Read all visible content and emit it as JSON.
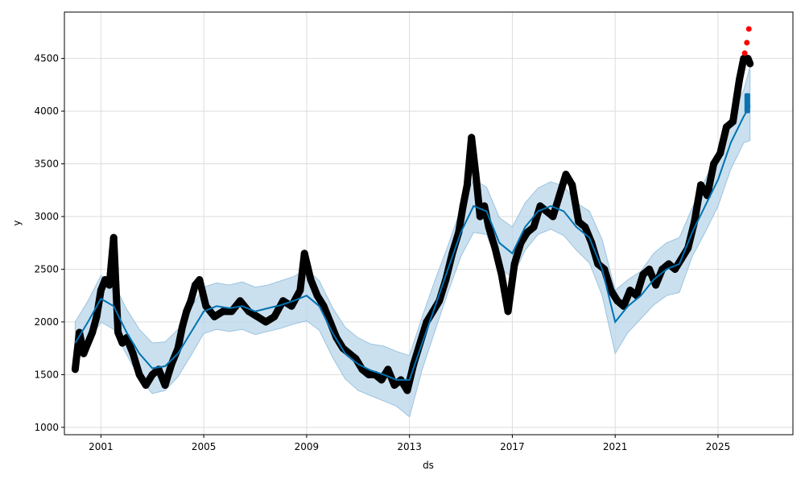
{
  "chart_data": {
    "type": "line",
    "xlabel": "ds",
    "ylabel": "y",
    "xlim": [
      "1999-08-01",
      "2027-12-01"
    ],
    "ylim": [
      930,
      4940
    ],
    "grid": true,
    "x_ticks": [
      {
        "label": "2001",
        "date": "2001-01-01"
      },
      {
        "label": "2005",
        "date": "2005-01-01"
      },
      {
        "label": "2009",
        "date": "2009-01-01"
      },
      {
        "label": "2013",
        "date": "2013-01-01"
      },
      {
        "label": "2017",
        "date": "2017-01-01"
      },
      {
        "label": "2021",
        "date": "2021-01-01"
      },
      {
        "label": "2025",
        "date": "2025-01-01"
      }
    ],
    "y_ticks": [
      1000,
      1500,
      2000,
      2500,
      3000,
      3500,
      4000,
      4500
    ],
    "colors": {
      "actual": "#000000",
      "forecast_line": "#0072B2",
      "uncertainty_band": "#B8D5E9",
      "future_points": "#FF0000",
      "forecast_block": "#0A72B0",
      "grid": "#dddddd"
    },
    "series": [
      {
        "role": "actual-observations",
        "x": [
          "2000-01-01",
          "2000-03-01",
          "2000-05-01",
          "2000-07-01",
          "2000-09-01",
          "2000-11-01",
          "2001-01-01",
          "2001-03-01",
          "2001-05-01",
          "2001-07-01",
          "2001-09-01",
          "2001-11-01",
          "2002-01-01",
          "2002-04-01",
          "2002-07-01",
          "2002-10-01",
          "2003-01-01",
          "2003-04-01",
          "2003-07-01",
          "2003-10-01",
          "2004-01-01",
          "2004-03-01",
          "2004-05-01",
          "2004-07-01",
          "2004-09-01",
          "2004-11-01",
          "2005-02-01",
          "2005-06-01",
          "2005-10-01",
          "2006-02-01",
          "2006-06-01",
          "2006-10-01",
          "2007-02-01",
          "2007-06-01",
          "2007-10-01",
          "2008-02-01",
          "2008-06-01",
          "2008-10-01",
          "2008-12-01",
          "2009-03-01",
          "2009-06-01",
          "2009-09-01",
          "2009-12-01",
          "2010-03-01",
          "2010-06-01",
          "2010-09-01",
          "2010-12-01",
          "2011-03-01",
          "2011-06-01",
          "2011-09-01",
          "2011-12-01",
          "2012-03-01",
          "2012-06-01",
          "2012-09-01",
          "2012-12-01",
          "2013-03-01",
          "2013-06-01",
          "2013-09-01",
          "2013-12-01",
          "2014-03-01",
          "2014-06-01",
          "2014-09-01",
          "2014-12-01",
          "2015-02-01",
          "2015-04-01",
          "2015-06-01",
          "2015-08-01",
          "2015-10-01",
          "2015-12-01",
          "2016-02-01",
          "2016-05-01",
          "2016-08-01",
          "2016-11-01",
          "2017-02-01",
          "2017-05-01",
          "2017-08-01",
          "2017-11-01",
          "2018-02-01",
          "2018-05-01",
          "2018-08-01",
          "2018-11-01",
          "2019-02-01",
          "2019-05-01",
          "2019-08-01",
          "2019-11-01",
          "2020-02-01",
          "2020-05-01",
          "2020-08-01",
          "2020-11-01",
          "2021-02-01",
          "2021-05-01",
          "2021-08-01",
          "2021-11-01",
          "2022-02-01",
          "2022-05-01",
          "2022-08-01",
          "2022-11-01",
          "2023-02-01",
          "2023-05-01",
          "2023-08-01",
          "2023-11-01",
          "2024-02-01",
          "2024-05-01",
          "2024-08-01",
          "2024-11-01",
          "2025-02-01",
          "2025-05-01",
          "2025-08-01",
          "2025-11-01",
          "2026-01-01",
          "2026-03-01",
          "2026-04-01"
        ],
        "y": [
          1550,
          1900,
          1700,
          1800,
          1900,
          2050,
          2300,
          2400,
          2350,
          2800,
          1900,
          1800,
          1850,
          1700,
          1500,
          1400,
          1500,
          1550,
          1400,
          1600,
          1750,
          1950,
          2100,
          2200,
          2350,
          2400,
          2150,
          2050,
          2100,
          2100,
          2200,
          2100,
          2050,
          2000,
          2050,
          2200,
          2150,
          2300,
          2650,
          2400,
          2250,
          2150,
          2000,
          1850,
          1750,
          1700,
          1650,
          1550,
          1500,
          1500,
          1450,
          1550,
          1400,
          1450,
          1350,
          1600,
          1800,
          2000,
          2100,
          2200,
          2400,
          2650,
          2850,
          3100,
          3300,
          3750,
          3400,
          3000,
          3100,
          2900,
          2700,
          2450,
          2100,
          2550,
          2750,
          2850,
          2900,
          3100,
          3050,
          3000,
          3200,
          3400,
          3300,
          2950,
          2900,
          2750,
          2550,
          2500,
          2300,
          2200,
          2150,
          2300,
          2250,
          2450,
          2500,
          2350,
          2500,
          2550,
          2500,
          2600,
          2700,
          2950,
          3300,
          3200,
          3500,
          3600,
          3850,
          3900,
          4300,
          4500,
          4500,
          4450
        ]
      },
      {
        "role": "forecast-yhat",
        "x": [
          "2000-01-01",
          "2000-07-01",
          "2001-01-01",
          "2001-07-01",
          "2002-01-01",
          "2002-07-01",
          "2003-01-01",
          "2003-07-01",
          "2004-01-01",
          "2004-07-01",
          "2005-01-01",
          "2005-07-01",
          "2006-01-01",
          "2006-07-01",
          "2007-01-01",
          "2007-07-01",
          "2008-01-01",
          "2008-07-01",
          "2009-01-01",
          "2009-07-01",
          "2010-01-01",
          "2010-07-01",
          "2011-01-01",
          "2011-07-01",
          "2012-01-01",
          "2012-07-01",
          "2013-01-01",
          "2013-07-01",
          "2014-01-01",
          "2014-07-01",
          "2015-01-01",
          "2015-07-01",
          "2016-01-01",
          "2016-07-01",
          "2017-01-01",
          "2017-07-01",
          "2018-01-01",
          "2018-07-01",
          "2019-01-01",
          "2019-07-01",
          "2020-01-01",
          "2020-07-01",
          "2021-01-01",
          "2021-07-01",
          "2022-01-01",
          "2022-07-01",
          "2023-01-01",
          "2023-07-01",
          "2024-01-01",
          "2024-07-01",
          "2025-01-01",
          "2025-07-01",
          "2026-01-01",
          "2026-04-01"
        ],
        "y": [
          1800,
          2000,
          2220,
          2150,
          1900,
          1700,
          1560,
          1580,
          1700,
          1900,
          2100,
          2150,
          2130,
          2150,
          2100,
          2130,
          2160,
          2200,
          2250,
          2150,
          1900,
          1700,
          1600,
          1540,
          1500,
          1450,
          1450,
          1800,
          2150,
          2500,
          2850,
          3100,
          3050,
          2750,
          2650,
          2900,
          3050,
          3100,
          3050,
          2900,
          2800,
          2500,
          2000,
          2150,
          2250,
          2400,
          2500,
          2550,
          2850,
          3100,
          3350,
          3700,
          3950,
          4050
        ]
      },
      {
        "role": "uncertainty-interval",
        "x": [
          "2000-01-01",
          "2000-07-01",
          "2001-01-01",
          "2001-07-01",
          "2002-01-01",
          "2002-07-01",
          "2003-01-01",
          "2003-07-01",
          "2004-01-01",
          "2004-07-01",
          "2005-01-01",
          "2005-07-01",
          "2006-01-01",
          "2006-07-01",
          "2007-01-01",
          "2007-07-01",
          "2008-01-01",
          "2008-07-01",
          "2009-01-01",
          "2009-07-01",
          "2010-01-01",
          "2010-07-01",
          "2011-01-01",
          "2011-07-01",
          "2012-01-01",
          "2012-07-01",
          "2013-01-01",
          "2013-07-01",
          "2014-01-01",
          "2014-07-01",
          "2015-01-01",
          "2015-07-01",
          "2016-01-01",
          "2016-07-01",
          "2017-01-01",
          "2017-07-01",
          "2018-01-01",
          "2018-07-01",
          "2019-01-01",
          "2019-07-01",
          "2020-01-01",
          "2020-07-01",
          "2021-01-01",
          "2021-07-01",
          "2022-01-01",
          "2022-07-01",
          "2023-01-01",
          "2023-07-01",
          "2024-01-01",
          "2024-07-01",
          "2025-01-01",
          "2025-07-01",
          "2026-01-01",
          "2026-04-01"
        ],
        "lower": [
          1600,
          1790,
          2000,
          1930,
          1690,
          1470,
          1320,
          1350,
          1480,
          1680,
          1890,
          1930,
          1910,
          1930,
          1880,
          1910,
          1940,
          1980,
          2010,
          1920,
          1670,
          1460,
          1350,
          1300,
          1250,
          1200,
          1100,
          1550,
          1920,
          2280,
          2620,
          2850,
          2830,
          2520,
          2420,
          2680,
          2830,
          2880,
          2820,
          2680,
          2560,
          2250,
          1700,
          1900,
          2030,
          2160,
          2250,
          2280,
          2620,
          2850,
          3100,
          3450,
          3700,
          3720
        ],
        "upper": [
          2000,
          2200,
          2440,
          2370,
          2120,
          1930,
          1800,
          1810,
          1930,
          2130,
          2330,
          2370,
          2350,
          2380,
          2330,
          2350,
          2390,
          2430,
          2500,
          2390,
          2140,
          1950,
          1850,
          1790,
          1770,
          1720,
          1680,
          2050,
          2400,
          2720,
          3080,
          3350,
          3280,
          2990,
          2900,
          3130,
          3270,
          3330,
          3290,
          3130,
          3050,
          2780,
          2300,
          2400,
          2480,
          2650,
          2750,
          2800,
          3080,
          3350,
          3600,
          3950,
          4200,
          4420
        ]
      },
      {
        "role": "red-points",
        "x": [
          "2026-01-15",
          "2026-02-15",
          "2026-03-15"
        ],
        "y": [
          4550,
          4650,
          4780
        ]
      }
    ]
  }
}
